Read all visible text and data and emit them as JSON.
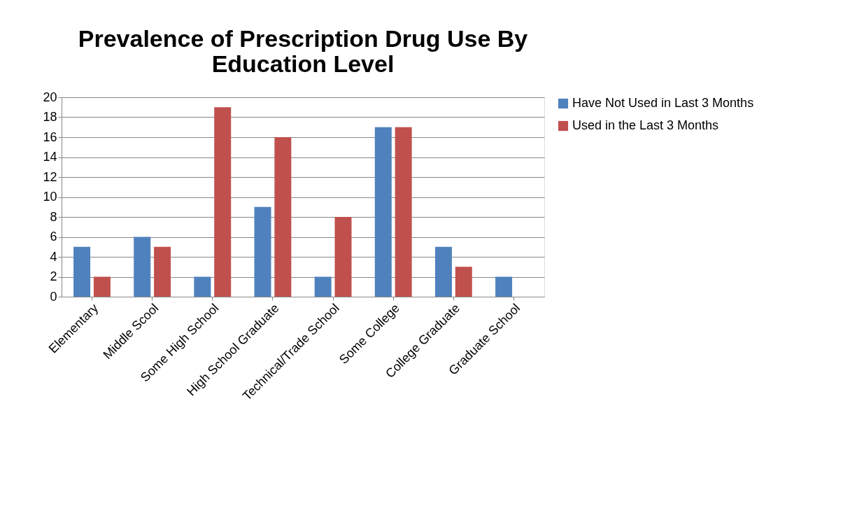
{
  "chart_data": {
    "type": "bar",
    "title": "Prevalence of Prescription Drug Use By Education Level",
    "categories": [
      "Elementary",
      "Middle Scool",
      "Some High School",
      "High School Graduate",
      "Technical/Trade School",
      "Some College",
      "College Graduate",
      "Graduate School"
    ],
    "series": [
      {
        "name": "Have Not Used in Last 3 Months",
        "color": "#4f81bd",
        "values": [
          5,
          6,
          2,
          9,
          2,
          17,
          5,
          2
        ]
      },
      {
        "name": "Used in the Last 3 Months",
        "color": "#c0504d",
        "values": [
          2,
          5,
          19,
          16,
          8,
          17,
          3,
          0
        ]
      }
    ],
    "ylim": [
      0,
      20
    ],
    "yticks": [
      0,
      2,
      4,
      6,
      8,
      10,
      12,
      14,
      16,
      18,
      20
    ],
    "grid": "y",
    "legend": "right"
  }
}
